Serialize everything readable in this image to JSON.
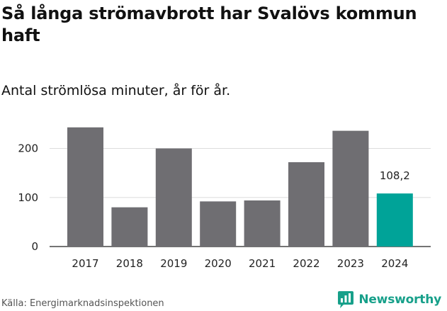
{
  "header": {
    "title": "Så långa strömavbrott har Svalövs kommun haft",
    "subtitle": "Antal strömlösa minuter, år för år."
  },
  "footer": {
    "source": "Källa: Energimarknadsinspektionen",
    "brand": "Newsworthy"
  },
  "colors": {
    "bar": "#6f6e72",
    "highlight": "#00a398",
    "grid": "#dddddd",
    "brand": "#17a08a"
  },
  "icons": {
    "brand_logo": "newsworthy-logo-icon"
  },
  "chart_data": {
    "type": "bar",
    "categories": [
      "2017",
      "2018",
      "2019",
      "2020",
      "2021",
      "2022",
      "2023",
      "2024"
    ],
    "values": [
      243,
      80,
      200,
      92,
      94,
      172,
      236,
      108.2
    ],
    "highlight_index": 7,
    "data_labels": {
      "7": "108,2"
    },
    "yticks": [
      0,
      100,
      200
    ],
    "ylim": [
      0,
      260
    ],
    "grid": true,
    "legend": "none"
  }
}
